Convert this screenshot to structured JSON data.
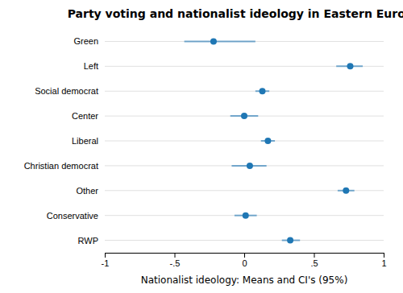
{
  "chart_data": {
    "type": "dot",
    "orientation": "horizontal",
    "title": "Party voting and nationalist ideology in Eastern Europe",
    "xlabel": "Nationalist ideology: Means and CI's (95%)",
    "categories": [
      "Green",
      "Left",
      "Social democrat",
      "Center",
      "Liberal",
      "Christian democrat",
      "Other",
      "Conservative",
      "RWP"
    ],
    "values": [
      -0.22,
      0.76,
      0.13,
      0.0,
      0.17,
      0.04,
      0.73,
      0.01,
      0.33
    ],
    "ci_low": [
      -0.43,
      0.66,
      0.08,
      -0.1,
      0.12,
      -0.09,
      0.67,
      -0.07,
      0.27
    ],
    "ci_high": [
      0.08,
      0.85,
      0.18,
      0.1,
      0.22,
      0.16,
      0.79,
      0.09,
      0.4
    ],
    "xlim": [
      -1.0,
      1.0
    ],
    "xticks": [
      -1,
      {
        "value": -0.5,
        "label": "-.5"
      },
      0,
      {
        "value": 0.5,
        "label": ".5"
      },
      1
    ],
    "grid": true
  }
}
